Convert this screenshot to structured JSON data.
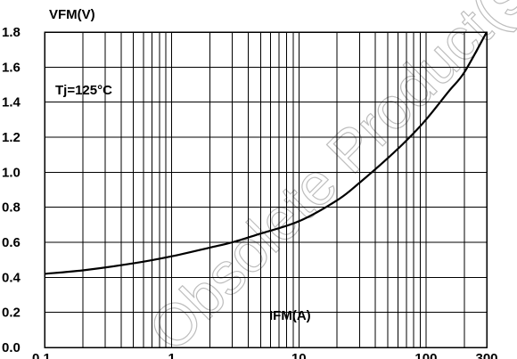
{
  "chart_data": {
    "type": "line",
    "ylabel": "VFM(V)",
    "xlabel": "IFM(A)",
    "annotation": "Tj=125°C",
    "x_scale": "log",
    "xlim": [
      0.1,
      300
    ],
    "ylim": [
      0.0,
      1.8
    ],
    "x_tick_labels": [
      "0.1",
      "1",
      "10",
      "100",
      "300"
    ],
    "x_tick_values": [
      0.1,
      1,
      10,
      100,
      300
    ],
    "y_tick_labels": [
      "0.0",
      "0.2",
      "0.4",
      "0.6",
      "0.8",
      "1.0",
      "1.2",
      "1.4",
      "1.6",
      "1.8"
    ],
    "y_tick_values": [
      0,
      0.2,
      0.4,
      0.6,
      0.8,
      1.0,
      1.2,
      1.4,
      1.6,
      1.8
    ],
    "grid": true,
    "series": [
      {
        "x": [
          0.1,
          0.2,
          0.5,
          1,
          2,
          3,
          5,
          10,
          20,
          30,
          50,
          70,
          100,
          150,
          200,
          300
        ],
        "y": [
          0.42,
          0.44,
          0.48,
          0.52,
          0.57,
          0.6,
          0.65,
          0.72,
          0.84,
          0.94,
          1.08,
          1.18,
          1.3,
          1.46,
          1.57,
          1.8
        ]
      }
    ],
    "watermark": "Obsolete Product(s) - "
  }
}
